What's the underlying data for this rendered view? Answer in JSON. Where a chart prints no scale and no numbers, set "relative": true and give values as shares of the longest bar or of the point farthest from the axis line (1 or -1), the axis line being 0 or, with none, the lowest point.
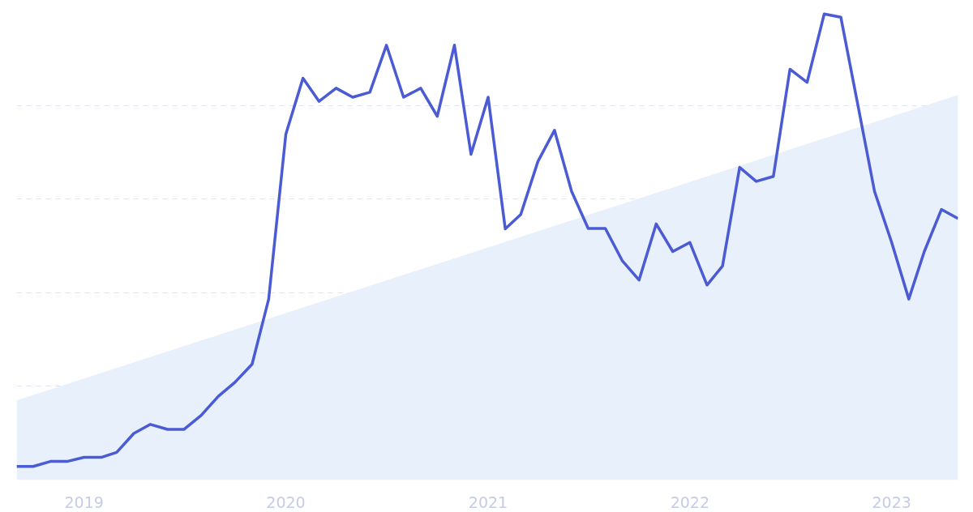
{
  "chart_data": {
    "type": "line",
    "relative": true,
    "grid": "y",
    "x": [
      "2018-09",
      "2018-10",
      "2018-11",
      "2018-12",
      "2019-01",
      "2019-02",
      "2019-03",
      "2019-04",
      "2019-05",
      "2019-06",
      "2019-07",
      "2019-08",
      "2019-09",
      "2019-10",
      "2019-11",
      "2019-12",
      "2020-01",
      "2020-02",
      "2020-03",
      "2020-04",
      "2020-05",
      "2020-06",
      "2020-07",
      "2020-08",
      "2020-09",
      "2020-10",
      "2020-11",
      "2020-12",
      "2021-01",
      "2021-02",
      "2021-03",
      "2021-04",
      "2021-05",
      "2021-06",
      "2021-07",
      "2021-08",
      "2021-09",
      "2021-10",
      "2021-11",
      "2021-12",
      "2022-01",
      "2022-02",
      "2022-03",
      "2022-04",
      "2022-05",
      "2022-06",
      "2022-07",
      "2022-08",
      "2022-09",
      "2022-10",
      "2022-11",
      "2022-12",
      "2023-01",
      "2023-02",
      "2023-03",
      "2023-04",
      "2023-05"
    ],
    "xlim": [
      "2018-09",
      "2023-05"
    ],
    "xticks": [
      {
        "value": "2019-01",
        "label": "2019"
      },
      {
        "value": "2020-01",
        "label": "2020"
      },
      {
        "value": "2021-01",
        "label": "2021"
      },
      {
        "value": "2022-01",
        "label": "2022"
      },
      {
        "value": "2023-01",
        "label": "2023"
      }
    ],
    "series": [
      {
        "type": "area",
        "color": "#e6eefb",
        "x": [
          "2018-09",
          "2023-05"
        ],
        "values": [
          0.146,
          0.821
        ]
      },
      {
        "color": "#4a5bd4",
        "values": [
          0,
          0,
          0.011,
          0.011,
          0.02,
          0.02,
          0.031,
          0.073,
          0.093,
          0.082,
          0.082,
          0.113,
          0.155,
          0.186,
          0.226,
          0.37,
          0.734,
          0.858,
          0.807,
          0.836,
          0.816,
          0.827,
          0.931,
          0.816,
          0.836,
          0.774,
          0.931,
          0.69,
          0.816,
          0.525,
          0.557,
          0.674,
          0.743,
          0.608,
          0.526,
          0.526,
          0.454,
          0.412,
          0.536,
          0.475,
          0.495,
          0.401,
          0.443,
          0.661,
          0.63,
          0.641,
          0.878,
          0.849,
          1,
          0.993,
          0.798,
          0.608,
          0.495,
          0.37,
          0.475,
          0.568,
          0.548
        ]
      }
    ]
  }
}
